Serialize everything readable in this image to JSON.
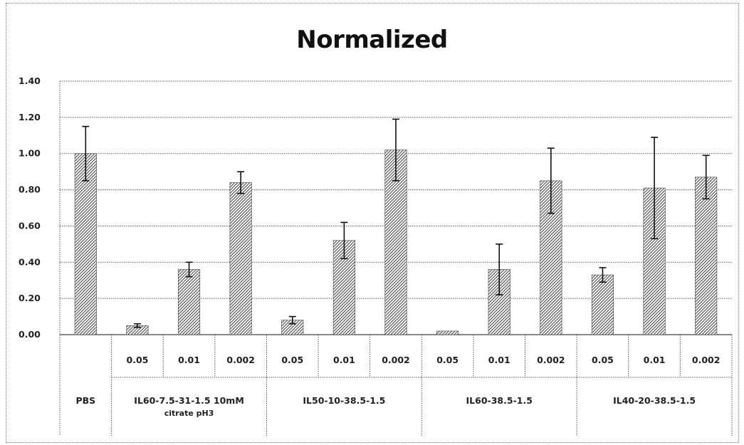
{
  "chart_data": {
    "type": "bar",
    "title": "Normalized",
    "xlabel": "",
    "ylabel": "",
    "ylim": [
      0,
      1.4
    ],
    "yticks": [
      "0.00",
      "0.20",
      "0.40",
      "0.60",
      "0.80",
      "1.00",
      "1.20",
      "1.40"
    ],
    "grid": true,
    "bar_pattern": "diagonal-hatch",
    "bar_color": "#333333",
    "groups": [
      {
        "name": "PBS",
        "name_line2": "",
        "bars": [
          {
            "label": "",
            "value": 1.0,
            "error": 0.15
          }
        ]
      },
      {
        "name": "IL60-7.5-31-1.5 10mM",
        "name_line2": "citrate pH3",
        "bars": [
          {
            "label": "0.05",
            "value": 0.05,
            "error": 0.01
          },
          {
            "label": "0.01",
            "value": 0.36,
            "error": 0.04
          },
          {
            "label": "0.002",
            "value": 0.84,
            "error": 0.06
          }
        ]
      },
      {
        "name": "IL50-10-38.5-1.5",
        "name_line2": "",
        "bars": [
          {
            "label": "0.05",
            "value": 0.08,
            "error": 0.02
          },
          {
            "label": "0.01",
            "value": 0.52,
            "error": 0.1
          },
          {
            "label": "0.002",
            "value": 1.02,
            "error": 0.17
          }
        ]
      },
      {
        "name": "IL60-38.5-1.5",
        "name_line2": "",
        "bars": [
          {
            "label": "0.05",
            "value": 0.02,
            "error": 0.0
          },
          {
            "label": "0.01",
            "value": 0.36,
            "error": 0.14
          },
          {
            "label": "0.002",
            "value": 0.85,
            "error": 0.18
          }
        ]
      },
      {
        "name": "IL40-20-38.5-1.5",
        "name_line2": "",
        "bars": [
          {
            "label": "0.05",
            "value": 0.33,
            "error": 0.04
          },
          {
            "label": "0.01",
            "value": 0.81,
            "error": 0.28
          },
          {
            "label": "0.002",
            "value": 0.87,
            "error": 0.12
          }
        ]
      }
    ]
  }
}
